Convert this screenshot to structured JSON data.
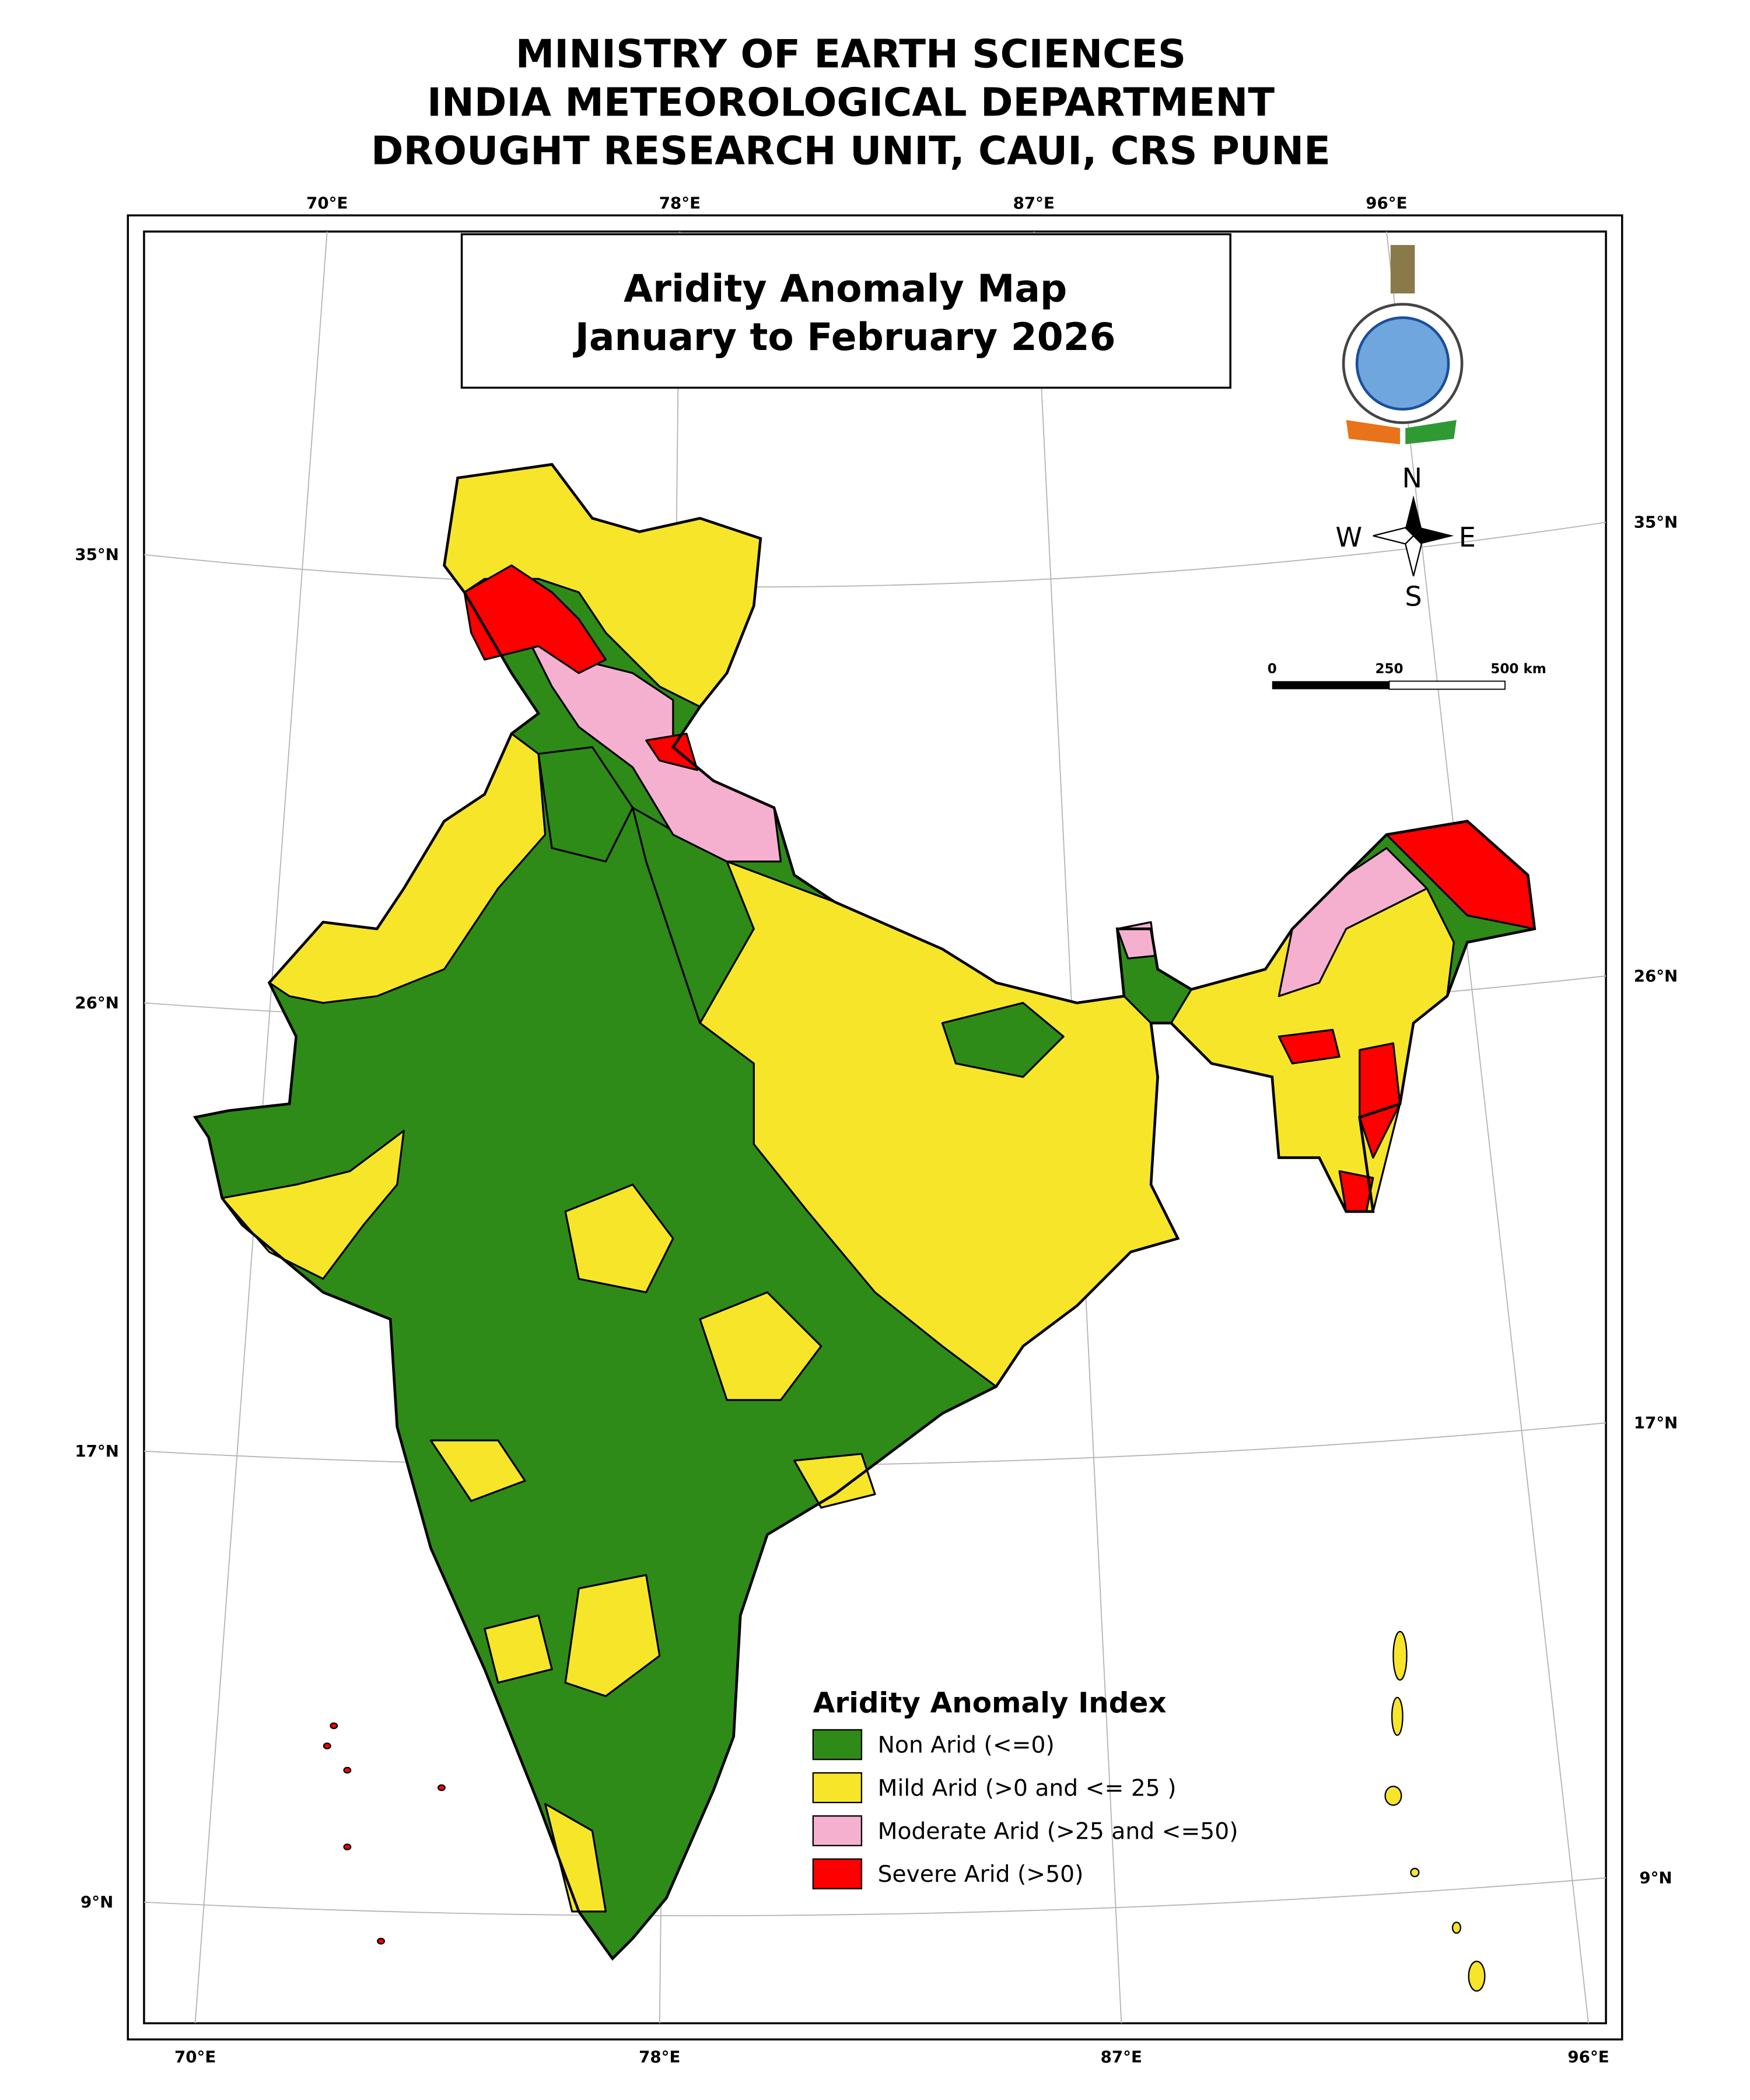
{
  "header": {
    "lines": [
      "MINISTRY OF EARTH SCIENCES",
      "INDIA METEOROLOGICAL DEPARTMENT",
      "DROUGHT RESEARCH UNIT, CAUI, CRS PUNE"
    ]
  },
  "map": {
    "title_lines": [
      "Aridity Anomaly Map",
      "January to February 2026"
    ],
    "longitude_labels": [
      "70°E",
      "78°E",
      "87°E",
      "96°E"
    ],
    "latitude_labels": [
      "35°N",
      "26°N",
      "17°N",
      "9°N"
    ],
    "compass": {
      "north": "N",
      "east": "E",
      "south": "S",
      "west": "W"
    },
    "scale_bar": [
      "0",
      "250",
      "500 km"
    ],
    "legend": {
      "title": "Aridity Anomaly Index",
      "items": [
        {
          "label": "Non Arid (<=0)",
          "color": "#2e8b17"
        },
        {
          "label": "Mild Arid (>0 and <= 25 )",
          "color": "#f7e52a"
        },
        {
          "label": "Moderate Arid (>25 and <=50)",
          "color": "#f5b0cf"
        },
        {
          "label": "Severe Arid (>50)",
          "color": "#ff0000"
        }
      ]
    }
  }
}
